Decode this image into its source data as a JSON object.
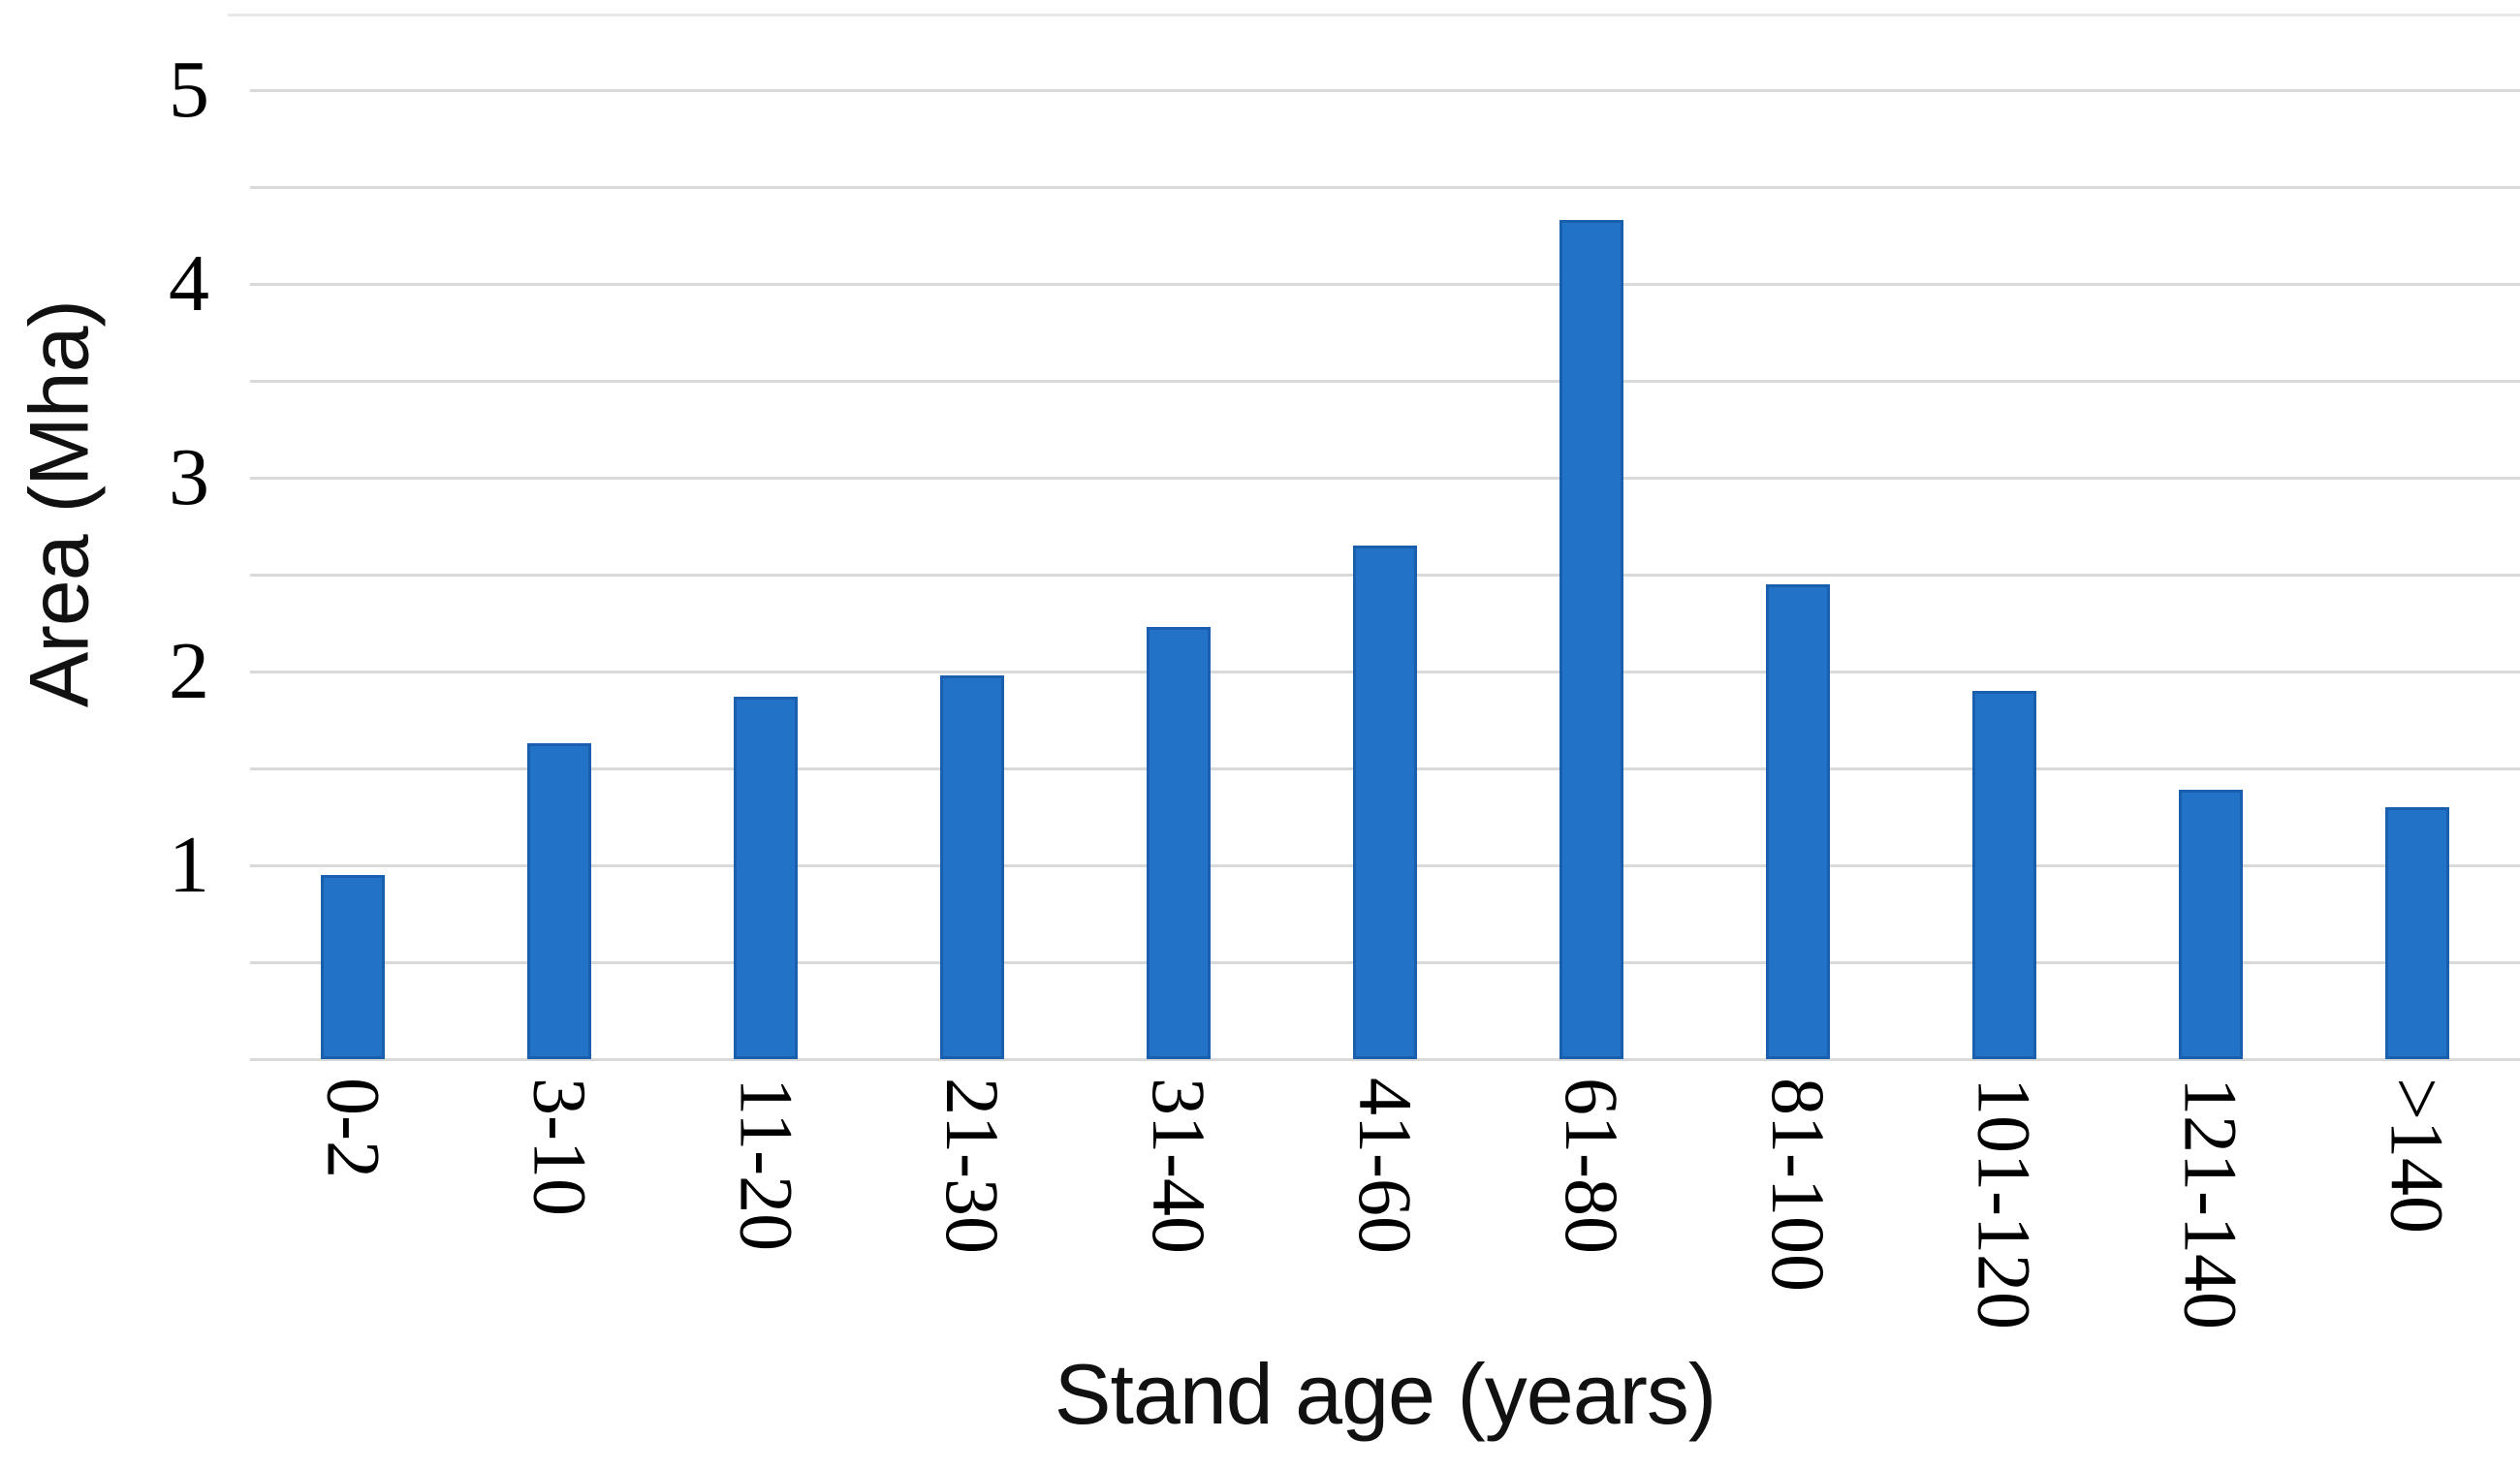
{
  "chart_data": {
    "type": "bar",
    "categories": [
      "0-2",
      "3-10",
      "11-20",
      "21-30",
      "31-40",
      "41-60",
      "61-80",
      "81-100",
      "101-120",
      "121-140",
      ">140"
    ],
    "values": [
      0.95,
      1.63,
      1.87,
      1.98,
      2.23,
      2.65,
      4.33,
      2.45,
      1.9,
      1.39,
      1.3
    ],
    "xlabel": "Stand age (years)",
    "ylabel": "Area (Mha)",
    "ylim": [
      0,
      5
    ],
    "y_ticks": [
      1,
      2,
      3,
      4,
      5
    ],
    "gridline_step": 0.5,
    "grid": true,
    "legend": "none",
    "bar_color": "#2272c8",
    "bar_border_color": "#1a5fad",
    "gridline_color": "#d9d9d9"
  }
}
